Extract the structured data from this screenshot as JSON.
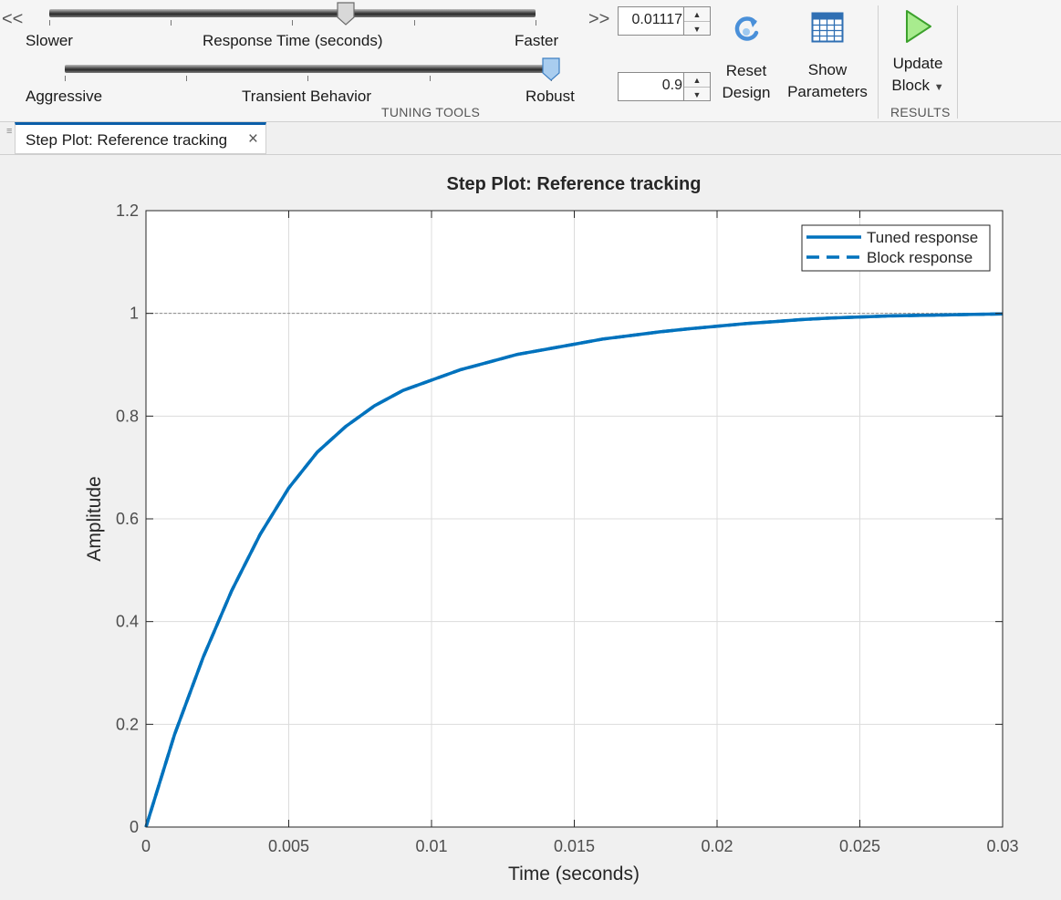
{
  "toolstrip": {
    "response_time": {
      "left_label": "Slower",
      "center_label": "Response Time (seconds)",
      "right_label": "Faster",
      "value": "0.01117",
      "slider_position": 0.61
    },
    "transient": {
      "left_label": "Aggressive",
      "center_label": "Transient Behavior",
      "right_label": "Robust",
      "value": "0.9",
      "slider_position": 1.0
    },
    "tuning_tools_label": "TUNING TOOLS",
    "results_label": "RESULTS",
    "reset_line1": "Reset",
    "reset_line2": "Design",
    "show_line1": "Show",
    "show_line2": "Parameters",
    "update_line1": "Update",
    "update_line2": "Block",
    "chevron_left": "<<",
    "chevron_right": ">>"
  },
  "tab": {
    "label": "Step Plot: Reference tracking",
    "close": "×"
  },
  "chart_data": {
    "type": "line",
    "title": "Step Plot: Reference tracking",
    "xlabel": "Time (seconds)",
    "ylabel": "Amplitude",
    "xlim": [
      0,
      0.03
    ],
    "ylim": [
      0,
      1.2
    ],
    "xticks": [
      0,
      0.005,
      0.01,
      0.015,
      0.02,
      0.025,
      0.03
    ],
    "xtick_labels": [
      "0",
      "0.005",
      "0.01",
      "0.015",
      "0.02",
      "0.025",
      "0.03"
    ],
    "yticks": [
      0,
      0.2,
      0.4,
      0.6,
      0.8,
      1.0,
      1.2
    ],
    "ytick_labels": [
      "0",
      "0.2",
      "0.4",
      "0.6",
      "0.8",
      "1",
      "1.2"
    ],
    "grid": true,
    "reference_line": 1,
    "legend_position": "top-right",
    "colors": {
      "line": "#0072bd",
      "grid": "#dcdcdc",
      "reference": "#8c8c8c"
    },
    "series": [
      {
        "name": "Tuned response",
        "style": "solid",
        "x": [
          0,
          0.001,
          0.002,
          0.003,
          0.004,
          0.005,
          0.006,
          0.007,
          0.008,
          0.009,
          0.01,
          0.011,
          0.012,
          0.013,
          0.014,
          0.015,
          0.016,
          0.017,
          0.018,
          0.019,
          0.02,
          0.021,
          0.022,
          0.023,
          0.024,
          0.025,
          0.026,
          0.027,
          0.028,
          0.029,
          0.03
        ],
        "y": [
          0,
          0.18,
          0.33,
          0.46,
          0.57,
          0.66,
          0.73,
          0.78,
          0.82,
          0.85,
          0.87,
          0.89,
          0.905,
          0.92,
          0.93,
          0.94,
          0.95,
          0.957,
          0.964,
          0.97,
          0.975,
          0.98,
          0.984,
          0.988,
          0.991,
          0.993,
          0.995,
          0.996,
          0.997,
          0.998,
          0.999
        ]
      },
      {
        "name": "Block response",
        "style": "dashed",
        "x": [
          0,
          0.001,
          0.002,
          0.003,
          0.004,
          0.005,
          0.006,
          0.007,
          0.008,
          0.009,
          0.01,
          0.011,
          0.012,
          0.013,
          0.014,
          0.015,
          0.016,
          0.017,
          0.018,
          0.019,
          0.02,
          0.021,
          0.022,
          0.023,
          0.024,
          0.025,
          0.026,
          0.027,
          0.028,
          0.029,
          0.03
        ],
        "y": [
          0,
          0.18,
          0.33,
          0.46,
          0.57,
          0.66,
          0.73,
          0.78,
          0.82,
          0.85,
          0.87,
          0.89,
          0.905,
          0.92,
          0.93,
          0.94,
          0.95,
          0.957,
          0.964,
          0.97,
          0.975,
          0.98,
          0.984,
          0.988,
          0.991,
          0.993,
          0.995,
          0.996,
          0.997,
          0.998,
          0.999
        ]
      }
    ]
  }
}
